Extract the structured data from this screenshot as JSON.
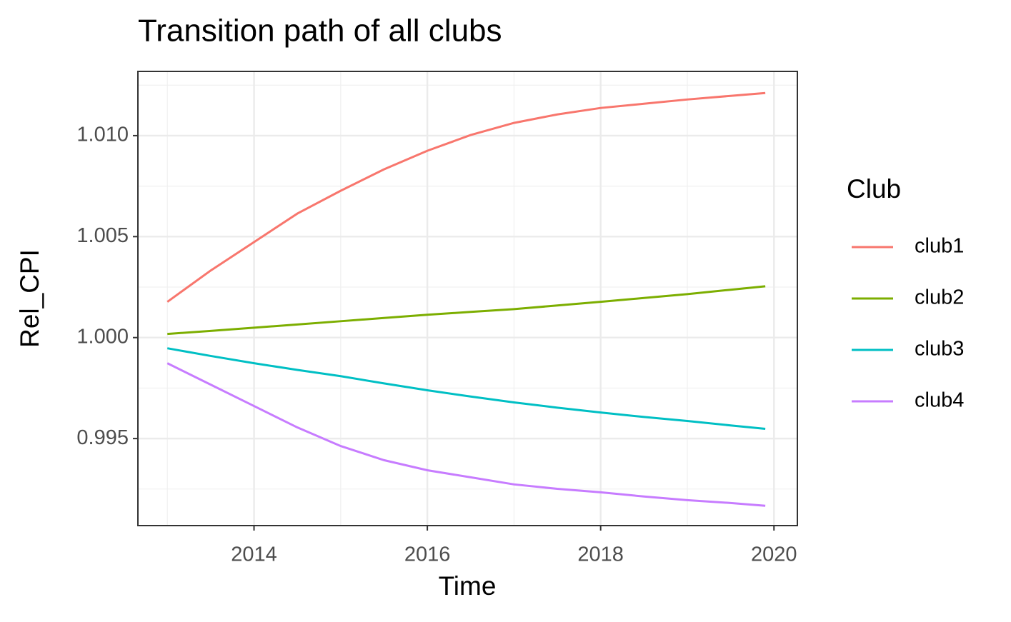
{
  "chart_data": {
    "type": "line",
    "title": "Transition path of all clubs",
    "x_label": "Time",
    "y_label": "Rel_CPI",
    "legend_title": "Club",
    "legend_position": "right",
    "grid": true,
    "x": [
      2013,
      2013.5,
      2014,
      2014.5,
      2015,
      2015.5,
      2016,
      2016.5,
      2017,
      2017.5,
      2018,
      2018.5,
      2019,
      2019.5,
      2019.9
    ],
    "series": [
      {
        "name": "club1",
        "color": "#F8766D",
        "values": [
          1.00177,
          1.00332,
          1.00473,
          1.00614,
          1.00727,
          1.00833,
          1.00925,
          1.01003,
          1.01063,
          1.01105,
          1.01137,
          1.01158,
          1.01179,
          1.01197,
          1.01211
        ]
      },
      {
        "name": "club2",
        "color": "#7CAE00",
        "values": [
          1.00018,
          1.00033,
          1.00049,
          1.00065,
          1.00081,
          1.00097,
          1.00113,
          1.00127,
          1.00141,
          1.00159,
          1.00177,
          1.00196,
          1.00215,
          1.00237,
          1.00254
        ]
      },
      {
        "name": "club3",
        "color": "#00BFC4",
        "values": [
          0.99947,
          0.99909,
          0.99873,
          0.9984,
          0.99809,
          0.99773,
          0.99739,
          0.99708,
          0.99679,
          0.99653,
          0.99629,
          0.99607,
          0.99587,
          0.99565,
          0.99548
        ]
      },
      {
        "name": "club4",
        "color": "#C77CFF",
        "values": [
          0.99873,
          0.99767,
          0.99661,
          0.99555,
          0.99463,
          0.99393,
          0.99343,
          0.99308,
          0.99273,
          0.99251,
          0.99234,
          0.99213,
          0.99195,
          0.99181,
          0.99167
        ]
      }
    ],
    "xlim": [
      2012.66,
      2020.27
    ],
    "xticks": [
      2014,
      2016,
      2018,
      2020
    ],
    "ylim": [
      0.99069,
      1.01318
    ],
    "yticks": [
      0.995,
      {
        "value": 1.0,
        "label": "1.000"
      },
      1.005,
      {
        "value": 1.01,
        "label": "1.010"
      }
    ]
  }
}
